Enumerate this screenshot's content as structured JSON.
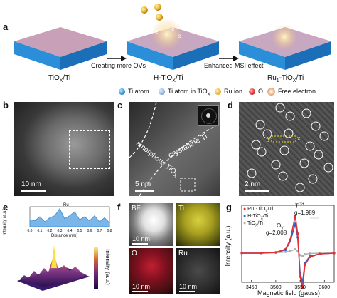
{
  "panels": {
    "a": {
      "label": "a",
      "stage_labels": [
        "TiO",
        "H-TiO",
        "Ru"
      ],
      "stage_full": [
        "TiOX/Ti",
        "H-TiOX/Ti",
        "Ru1-TiOX/Ti"
      ],
      "arrow1": "Creating more OVs",
      "arrow2": "Enhanced MSI effect",
      "legend": [
        "Ti atom",
        "Ti atom in TiOX",
        "Ru ion",
        "O",
        "Free electron"
      ],
      "electron_symbol": "e"
    },
    "b": {
      "label": "b",
      "scale": "10 nm"
    },
    "c": {
      "label": "c",
      "text1": "crystalline Ti",
      "text2": "amorphous TiOX",
      "scale": "5 nm"
    },
    "d": {
      "label": "d",
      "y_marker": "y",
      "x_marker": "x",
      "scale": "2 nm"
    },
    "e": {
      "label": "e",
      "ru_marker": "Ru",
      "xaxis": "Distance (nm)",
      "yaxis": "Intensity (a.u.)",
      "zlabel": "Intensity (a.u.)",
      "xticks": [
        "0.0",
        "0.1",
        "0.2",
        "0.3",
        "0.4",
        "0.5",
        "0.6",
        "0.7",
        "0.8"
      ]
    },
    "f": {
      "label": "f",
      "bf": "BF",
      "ti": "Ti",
      "o": "O",
      "ru": "Ru",
      "scale": "10 nm"
    },
    "g": {
      "label": "g",
      "ti3": "Ti3+",
      "g1": "g=1.989",
      "g2": "g=2.008",
      "o_mark": "O",
      "ylabel": "Intensity (a.u.)",
      "xlabel": "Magnetic field (gauss)",
      "xticks": [
        "3450",
        "3500",
        "3550",
        "3600"
      ],
      "legend": [
        "Ru1-TiOX/Ti",
        "H-TiOX/Ti",
        "TiOX/Ti"
      ]
    }
  },
  "chart_data": [
    {
      "type": "line",
      "title": "",
      "xlabel": "Distance (nm)",
      "ylabel": "Intensity (a.u.)",
      "xlim": [
        0,
        0.8
      ],
      "series": [
        {
          "name": "",
          "x": [
            0.0,
            0.05,
            0.1,
            0.15,
            0.2,
            0.25,
            0.3,
            0.35,
            0.4,
            0.45,
            0.5,
            0.55,
            0.6,
            0.65,
            0.7,
            0.75,
            0.8
          ],
          "y": [
            0.35,
            0.3,
            0.5,
            0.25,
            0.45,
            0.55,
            0.9,
            0.4,
            0.55,
            0.75,
            0.35,
            0.5,
            0.3,
            0.55,
            0.25,
            0.45,
            0.2
          ]
        }
      ]
    },
    {
      "type": "line",
      "title": "",
      "xlabel": "Magnetic field (gauss)",
      "ylabel": "Intensity (a.u.)",
      "xlim": [
        3430,
        3620
      ],
      "series": [
        {
          "name": "Ru1-TiOX/Ti",
          "color": "#e03030",
          "x": [
            3430,
            3470,
            3500,
            3520,
            3530,
            3540,
            3545,
            3550,
            3555,
            3560,
            3570,
            3590,
            3620
          ],
          "y": [
            0,
            0,
            0.02,
            0.1,
            0.35,
            0.95,
            0.5,
            -0.6,
            -0.9,
            -0.3,
            -0.1,
            -0.02,
            0
          ]
        },
        {
          "name": "H-TiOX/Ti",
          "color": "#3060d0",
          "x": [
            3430,
            3470,
            3500,
            3520,
            3530,
            3540,
            3545,
            3550,
            3555,
            3560,
            3570,
            3590,
            3620
          ],
          "y": [
            0,
            0,
            0.02,
            0.08,
            0.3,
            0.75,
            0.4,
            -0.5,
            -0.75,
            -0.25,
            -0.08,
            -0.02,
            0
          ]
        },
        {
          "name": "TiOX/Ti",
          "color": "#b0b0b0",
          "x": [
            3430,
            3470,
            3500,
            3520,
            3530,
            3540,
            3545,
            3550,
            3555,
            3560,
            3570,
            3590,
            3620
          ],
          "y": [
            0,
            0,
            0.01,
            0.03,
            0.05,
            0.1,
            0.05,
            -0.05,
            -0.08,
            -0.03,
            -0.01,
            0,
            0
          ]
        }
      ]
    }
  ]
}
